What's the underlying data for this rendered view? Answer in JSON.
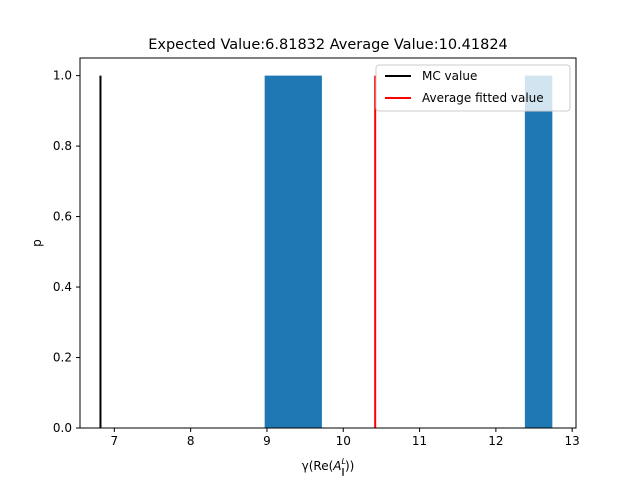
{
  "chart_data": {
    "type": "bar",
    "title": "Expected Value:6.81832 Average Value:10.41824",
    "xlabel_prefix": "γ(Re(",
    "xlabel_var": "A",
    "xlabel_sup": "L",
    "xlabel_sub": "∥",
    "xlabel_suffix": "))",
    "ylabel": "p",
    "xlim": [
      6.55,
      13.05
    ],
    "ylim": [
      0.0,
      1.05
    ],
    "xticks": [
      7,
      8,
      9,
      10,
      11,
      12,
      13
    ],
    "yticks": [
      0.0,
      0.2,
      0.4,
      0.6,
      0.8,
      1.0
    ],
    "ytick_labels": [
      "0.0",
      "0.2",
      "0.4",
      "0.6",
      "0.8",
      "1.0"
    ],
    "bar_color": "#1f77b4",
    "bars": [
      {
        "x0": 8.97,
        "x1": 9.72,
        "value": 1.0
      },
      {
        "x0": 12.38,
        "x1": 12.74,
        "value": 1.0
      }
    ],
    "vlines": [
      {
        "name": "MC value",
        "x": 6.81832,
        "ymax": 1.0,
        "color": "#000000"
      },
      {
        "name": "Average fitted value",
        "x": 10.41824,
        "ymax": 1.0,
        "color": "#ff0000"
      }
    ],
    "legend_position": "upper right",
    "grid": false
  }
}
